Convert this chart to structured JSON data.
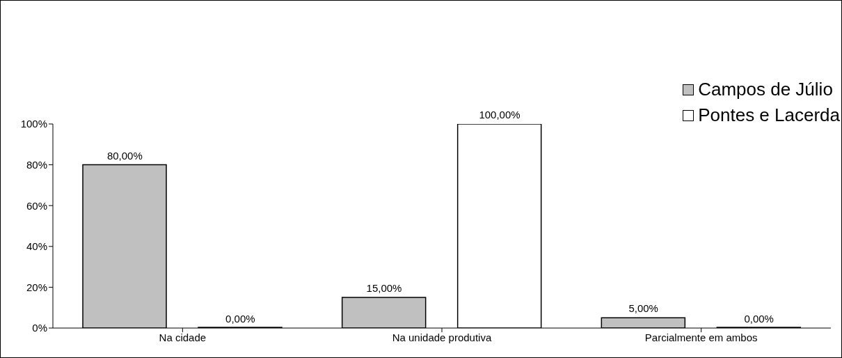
{
  "chart_data": {
    "type": "bar",
    "categories": [
      "Na cidade",
      "Na unidade produtiva",
      "Parcialmente em ambos"
    ],
    "series": [
      {
        "name": "Campos de Júlio",
        "color": "#c0c0c0",
        "values": [
          80,
          15,
          5
        ],
        "value_labels": [
          "80,00%",
          "15,00%",
          "5,00%"
        ]
      },
      {
        "name": "Pontes e Lacerda",
        "color": "#ffffff",
        "values": [
          0,
          100,
          0
        ],
        "value_labels": [
          "0,00%",
          "100,00%",
          "0,00%"
        ]
      }
    ],
    "ylim": [
      0,
      100
    ],
    "yticks": [
      {
        "value": 0,
        "label": "0%"
      },
      {
        "value": 20,
        "label": "20%"
      },
      {
        "value": 40,
        "label": "40%"
      },
      {
        "value": 60,
        "label": "60%"
      },
      {
        "value": 80,
        "label": "80%"
      },
      {
        "value": 100,
        "label": "100%"
      }
    ],
    "grid": false,
    "legend": "top right"
  }
}
